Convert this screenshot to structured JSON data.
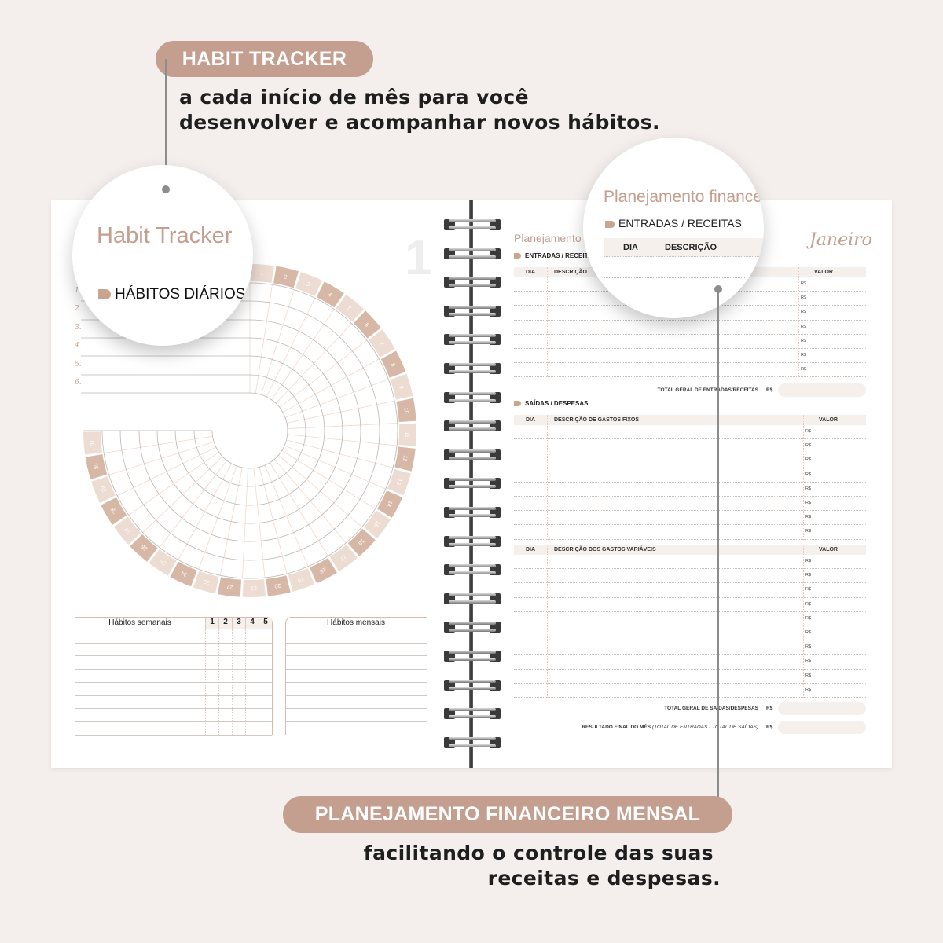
{
  "colors": {
    "accent": "#c49e8f",
    "day_dark": "#d7b8a6",
    "day_light": "#eddcd2",
    "background": "#f4eeec"
  },
  "callout_top": {
    "pill": "HABIT TRACKER",
    "line1": "a cada início de mês para você",
    "line2": "desenvolver e acompanhar novos hábitos."
  },
  "callout_bottom": {
    "pill": "PLANEJAMENTO FINANCEIRO MENSAL",
    "line1": "facilitando o controle das suas",
    "line2": "receitas e despesas."
  },
  "habit_page": {
    "title": "Habit Tracker",
    "section": "HÁBITOS DIÁRIOS",
    "page_number": "1",
    "habit_numbers": [
      "1.",
      "2.",
      "3.",
      "4.",
      "5.",
      "6."
    ],
    "days": [
      "1",
      "2",
      "3",
      "4",
      "5",
      "6",
      "7",
      "8",
      "9",
      "10",
      "11",
      "12",
      "13",
      "14",
      "15",
      "16",
      "17",
      "18",
      "19",
      "20",
      "21",
      "22",
      "23",
      "24",
      "25",
      "26",
      "27",
      "28",
      "29",
      "30",
      "31"
    ],
    "weekly": {
      "title": "Hábitos semanais",
      "weeks": [
        "1",
        "2",
        "3",
        "4",
        "5"
      ]
    },
    "monthly": {
      "title": "Hábitos mensais"
    }
  },
  "finance_page": {
    "title": "Planejamento financeiro",
    "lens_title": "Planejamento finance",
    "month": "Janeiro",
    "income": {
      "section": "ENTRADAS / RECEITAS",
      "col_day": "DIA",
      "col_desc": "DESCRIÇÃO",
      "col_value": "VALOR",
      "currency": "R$",
      "total_label": "TOTAL GERAL DE ENTRADAS/RECEITAS"
    },
    "expenses": {
      "section": "SAÍDAS / DESPESAS",
      "col_day": "DIA",
      "fixed_desc": "DESCRIÇÃO DE GASTOS FIXOS",
      "variable_desc": "DESCRIÇÃO DOS GASTOS VARIÁVEIS",
      "col_value": "VALOR",
      "currency": "R$",
      "total_label": "TOTAL GERAL DE SAÍDAS/DESPESAS",
      "result_label": "RESULTADO FINAL DO MÊS",
      "result_note": "(TOTAL DE ENTRADAS - TOTAL DE SAÍDAS)"
    }
  }
}
